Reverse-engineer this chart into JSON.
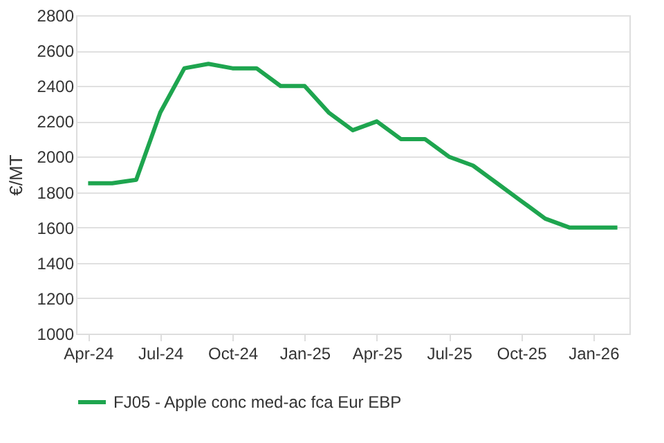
{
  "chart_data": {
    "type": "line",
    "ylabel": "€/MT",
    "categories": [
      "Apr-24",
      null,
      null,
      "Jul-24",
      null,
      null,
      "Oct-24",
      null,
      null,
      "Jan-25",
      null,
      null,
      "Apr-25",
      null,
      null,
      "Jul-25",
      null,
      null,
      "Oct-25",
      null,
      null,
      "Jan-26",
      null
    ],
    "series": [
      {
        "name": "FJ05 - Apple conc med-ac fca Eur EBP",
        "color": "#1ea54f",
        "values": [
          1850,
          1850,
          1870,
          2250,
          2500,
          2525,
          2500,
          2500,
          2400,
          2400,
          2250,
          2150,
          2200,
          2100,
          2100,
          2000,
          1950,
          1850,
          1750,
          1650,
          1600,
          1600,
          1600
        ]
      }
    ],
    "ylim": [
      1000,
      2800
    ],
    "yticks": [
      1000,
      1200,
      1400,
      1600,
      1800,
      2000,
      2200,
      2400,
      2600,
      2800
    ],
    "grid": "y",
    "legend": "bottom",
    "marker": "none",
    "line_style": "solid"
  }
}
